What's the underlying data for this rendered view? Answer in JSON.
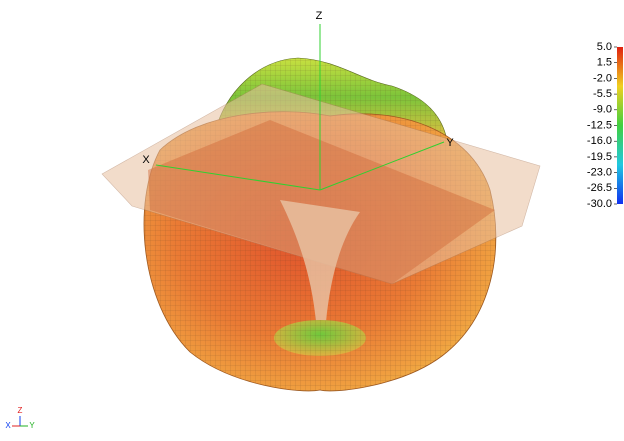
{
  "axes": {
    "z": "Z",
    "x": "X",
    "y": "Y"
  },
  "triad": {
    "x": "X",
    "y": "Y",
    "z": "Z"
  },
  "colorbar": {
    "ticks": [
      {
        "value": 5,
        "label": "5.0"
      },
      {
        "value": 1.5,
        "label": "1.5"
      },
      {
        "value": -2,
        "label": "-2.0"
      },
      {
        "value": -5.5,
        "label": "-5.5"
      },
      {
        "value": -9,
        "label": "-9.0"
      },
      {
        "value": -12.5,
        "label": "-12.5"
      },
      {
        "value": -16,
        "label": "-16.0"
      },
      {
        "value": -19.5,
        "label": "-19.5"
      },
      {
        "value": -23,
        "label": "-23.0"
      },
      {
        "value": -26.5,
        "label": "-26.5"
      },
      {
        "value": -30,
        "label": "-30.0"
      }
    ]
  }
}
